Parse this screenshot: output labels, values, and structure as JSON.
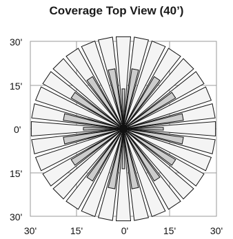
{
  "title": "Coverage Top View (40’)",
  "y_labels": [
    "30'",
    "15'",
    "0'",
    "15'",
    "30'"
  ],
  "x_labels": [
    "30'",
    "15'",
    "0'",
    "15'",
    "30'"
  ],
  "colors": {
    "outline": "#111111",
    "grid": "#9a9a9a",
    "outer_fill": "#f4f4f4",
    "inner_fill": "#cccccc"
  }
}
